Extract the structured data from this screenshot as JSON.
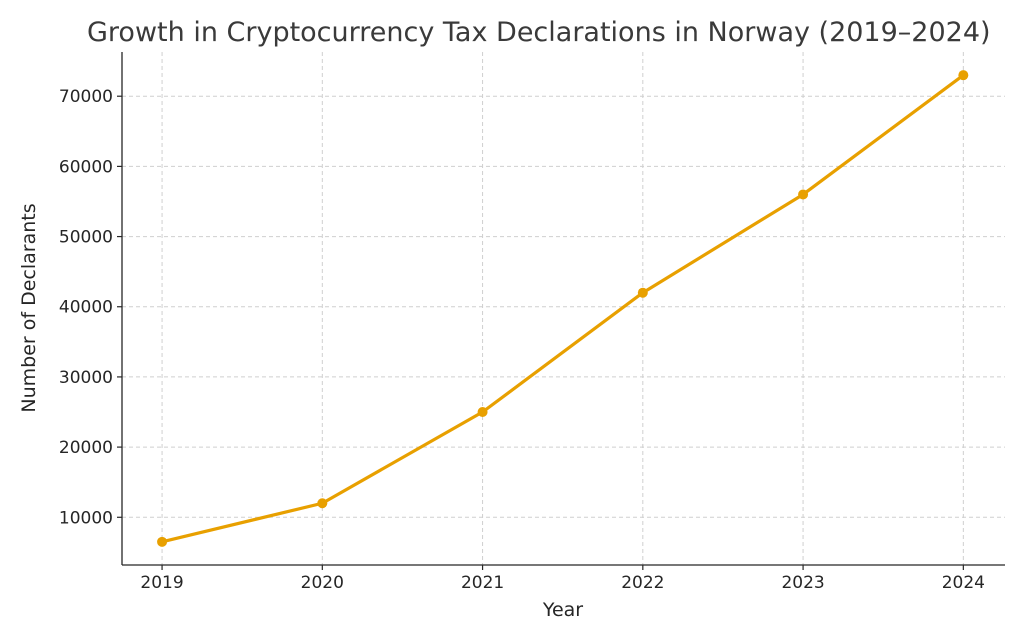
{
  "chart_data": {
    "type": "line",
    "title": "Growth in Cryptocurrency Tax Declarations in Norway (2019–2024)",
    "xlabel": "Year",
    "ylabel": "Number of Declarants",
    "x": [
      2019,
      2020,
      2021,
      2022,
      2023,
      2024
    ],
    "x_tick_labels": [
      "2019",
      "2020",
      "2021",
      "2022",
      "2023",
      "2024"
    ],
    "y_ticks": [
      10000,
      20000,
      30000,
      40000,
      50000,
      60000,
      70000
    ],
    "y_tick_labels": [
      "10000",
      "20000",
      "30000",
      "40000",
      "50000",
      "60000",
      "70000"
    ],
    "series": [
      {
        "name": "Declarants",
        "values": [
          6500,
          12000,
          25000,
          42000,
          56000,
          73000
        ],
        "color": "#E8A000"
      }
    ],
    "xlim": [
      2018.75,
      2024.26
    ],
    "ylim": [
      3200,
      76300
    ],
    "grid": true,
    "legend": "none"
  }
}
